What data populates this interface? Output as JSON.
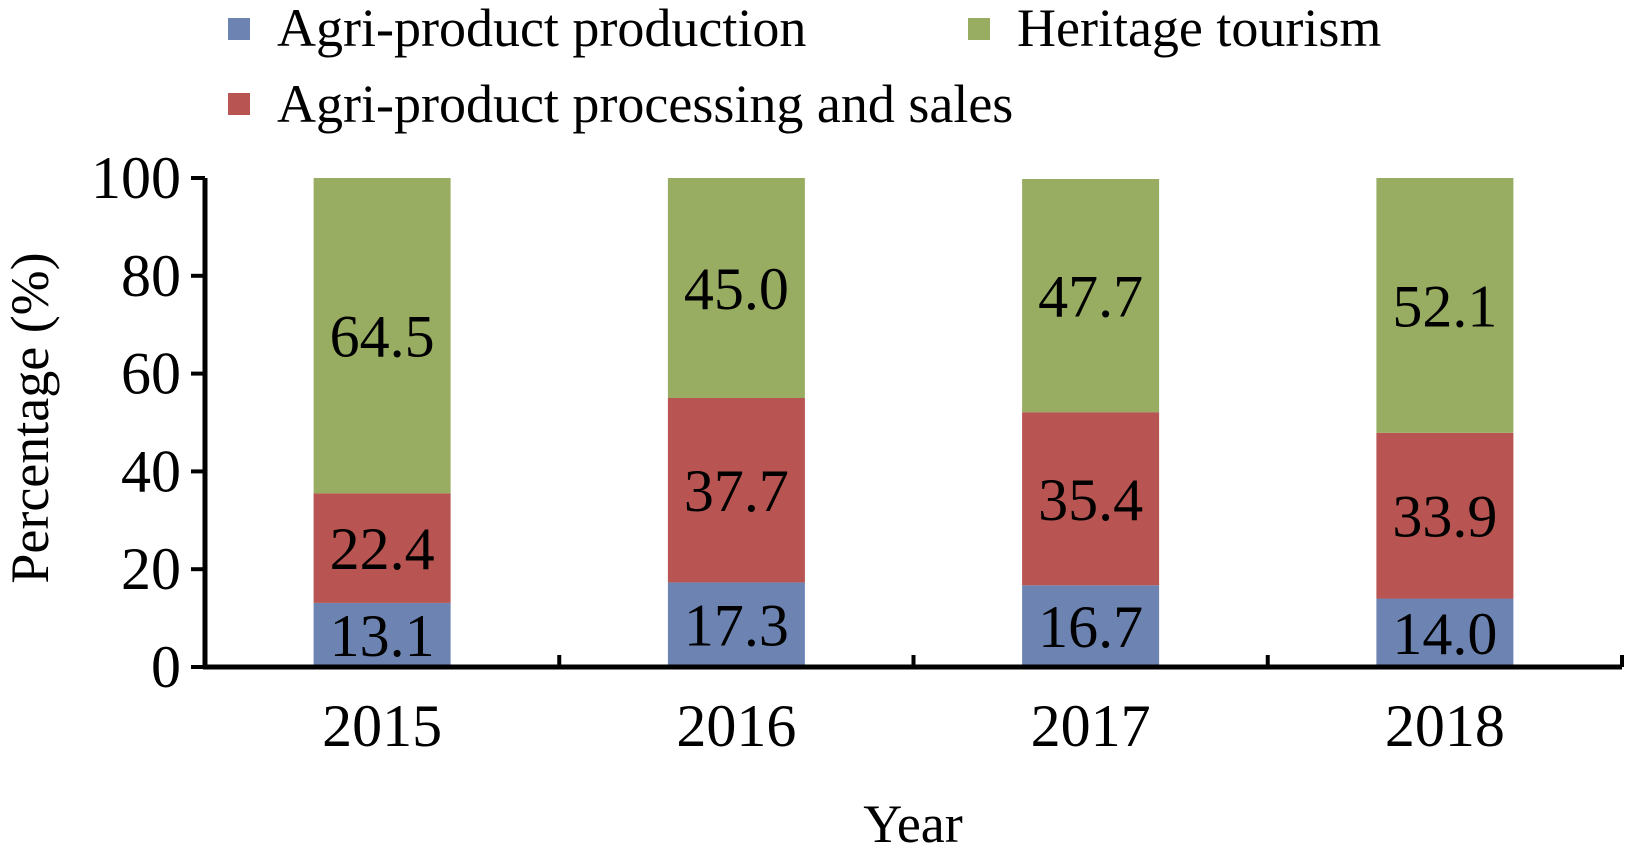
{
  "chart_data": {
    "type": "bar",
    "stacked": true,
    "categories": [
      "2015",
      "2016",
      "2017",
      "2018"
    ],
    "series": [
      {
        "name": "Agri-product production",
        "color": "#6d84b3",
        "values": [
          13.1,
          17.3,
          16.7,
          14.0
        ],
        "labels": [
          "13.1",
          "17.3",
          "16.7",
          "14.0"
        ]
      },
      {
        "name": "Agri-product processing and sales",
        "color": "#b85451",
        "values": [
          22.4,
          37.7,
          35.4,
          33.9
        ],
        "labels": [
          "22.4",
          "37.7",
          "35.4",
          "33.9"
        ]
      },
      {
        "name": "Heritage tourism",
        "color": "#98ad62",
        "values": [
          64.5,
          45.0,
          47.7,
          52.1
        ],
        "labels": [
          "64.5",
          "45.0",
          "47.7",
          "52.1"
        ]
      }
    ],
    "xlabel": "Year",
    "ylabel": "Percentage (%)",
    "ylim": [
      0,
      100
    ],
    "yticks": [
      0,
      20,
      40,
      60,
      80,
      100
    ],
    "grid": false,
    "legend_position": "top"
  }
}
